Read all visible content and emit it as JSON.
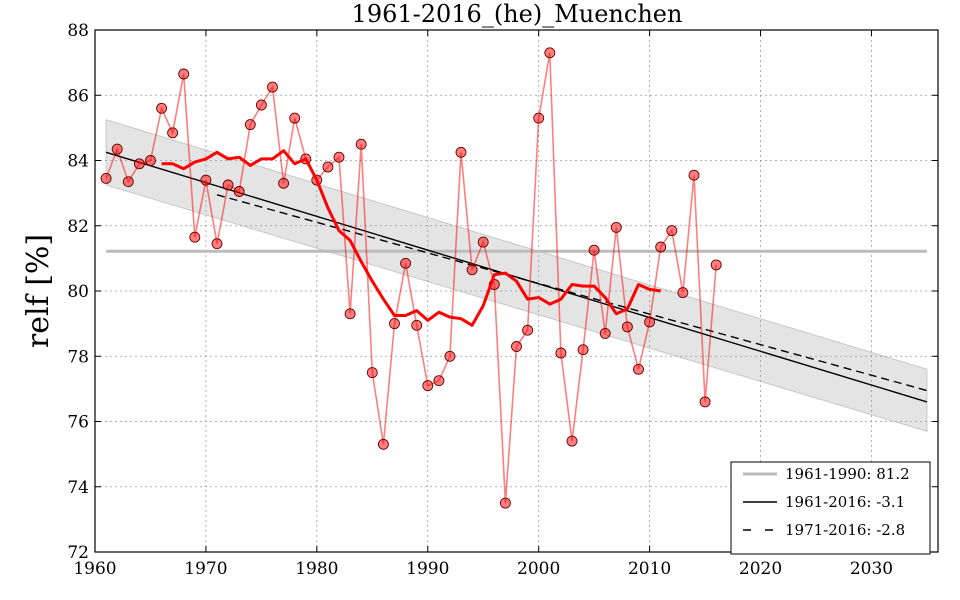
{
  "chart_data": {
    "type": "line",
    "title": "1961-2016_(he)_Muenchen",
    "ylabel": "relf [%]",
    "xlabel": "",
    "xlim": [
      1960,
      2036
    ],
    "ylim": [
      72,
      88
    ],
    "xticks": [
      1960,
      1970,
      1980,
      1990,
      2000,
      2010,
      2020,
      2030
    ],
    "yticks": [
      72,
      74,
      76,
      78,
      80,
      82,
      84,
      86,
      88
    ],
    "grid": true,
    "legend_position": "bottom-right",
    "series": [
      {
        "name": "",
        "kind": "annual-values",
        "color": "#ff0000",
        "points": [
          [
            1961,
            83.45
          ],
          [
            1962,
            84.35
          ],
          [
            1963,
            83.35
          ],
          [
            1964,
            83.9
          ],
          [
            1965,
            84.0
          ],
          [
            1966,
            85.6
          ],
          [
            1967,
            84.85
          ],
          [
            1968,
            86.65
          ],
          [
            1969,
            81.65
          ],
          [
            1970,
            83.4
          ],
          [
            1971,
            81.45
          ],
          [
            1972,
            83.25
          ],
          [
            1973,
            83.05
          ],
          [
            1974,
            85.1
          ],
          [
            1975,
            85.7
          ],
          [
            1976,
            86.25
          ],
          [
            1977,
            83.3
          ],
          [
            1978,
            85.3
          ],
          [
            1979,
            84.05
          ],
          [
            1980,
            83.4
          ],
          [
            1981,
            83.8
          ],
          [
            1982,
            84.1
          ],
          [
            1983,
            79.3
          ],
          [
            1984,
            84.5
          ],
          [
            1985,
            77.5
          ],
          [
            1986,
            75.3
          ],
          [
            1987,
            79.0
          ],
          [
            1988,
            80.85
          ],
          [
            1989,
            78.95
          ],
          [
            1990,
            77.1
          ],
          [
            1991,
            77.25
          ],
          [
            1992,
            78.0
          ],
          [
            1993,
            84.25
          ],
          [
            1994,
            80.65
          ],
          [
            1995,
            81.5
          ],
          [
            1996,
            80.2
          ],
          [
            1997,
            73.5
          ],
          [
            1998,
            78.3
          ],
          [
            1999,
            78.8
          ],
          [
            2000,
            85.3
          ],
          [
            2001,
            87.3
          ],
          [
            2002,
            78.1
          ],
          [
            2003,
            75.4
          ],
          [
            2004,
            78.2
          ],
          [
            2005,
            81.25
          ],
          [
            2006,
            78.7
          ],
          [
            2007,
            81.95
          ],
          [
            2008,
            78.9
          ],
          [
            2009,
            77.6
          ],
          [
            2010,
            79.05
          ],
          [
            2011,
            81.35
          ],
          [
            2012,
            81.85
          ],
          [
            2013,
            79.95
          ],
          [
            2014,
            83.55
          ],
          [
            2015,
            76.6
          ],
          [
            2016,
            80.8
          ]
        ]
      },
      {
        "name": "",
        "kind": "moving-average",
        "color": "#ff0000",
        "points": [
          [
            1966,
            83.9
          ],
          [
            1967,
            83.9
          ],
          [
            1968,
            83.75
          ],
          [
            1969,
            83.95
          ],
          [
            1970,
            84.05
          ],
          [
            1971,
            84.25
          ],
          [
            1972,
            84.05
          ],
          [
            1973,
            84.1
          ],
          [
            1974,
            83.85
          ],
          [
            1975,
            84.05
          ],
          [
            1976,
            84.05
          ],
          [
            1977,
            84.3
          ],
          [
            1978,
            83.9
          ],
          [
            1979,
            84.05
          ],
          [
            1980,
            83.4
          ],
          [
            1981,
            82.55
          ],
          [
            1982,
            81.85
          ],
          [
            1983,
            81.55
          ],
          [
            1984,
            80.9
          ],
          [
            1985,
            80.3
          ],
          [
            1986,
            79.75
          ],
          [
            1987,
            79.25
          ],
          [
            1988,
            79.25
          ],
          [
            1989,
            79.4
          ],
          [
            1990,
            79.1
          ],
          [
            1991,
            79.35
          ],
          [
            1992,
            79.2
          ],
          [
            1993,
            79.15
          ],
          [
            1994,
            78.95
          ],
          [
            1995,
            79.55
          ],
          [
            1996,
            80.5
          ],
          [
            1997,
            80.55
          ],
          [
            1998,
            80.3
          ],
          [
            1999,
            79.75
          ],
          [
            2000,
            79.8
          ],
          [
            2001,
            79.6
          ],
          [
            2002,
            79.75
          ],
          [
            2003,
            80.2
          ],
          [
            2004,
            80.15
          ],
          [
            2005,
            80.15
          ],
          [
            2006,
            79.8
          ],
          [
            2007,
            79.3
          ],
          [
            2008,
            79.45
          ],
          [
            2009,
            80.2
          ],
          [
            2010,
            80.05
          ],
          [
            2011,
            80.0
          ]
        ]
      },
      {
        "name": "1961-1990: 81.2",
        "kind": "reference-mean",
        "color": "#bbbbbb",
        "dash": "solid",
        "points": [
          [
            1961,
            81.22
          ],
          [
            2035,
            81.22
          ]
        ]
      },
      {
        "name": "1961-2016: -3.1",
        "kind": "trend",
        "color": "#000000",
        "dash": "solid",
        "points": [
          [
            1961,
            84.25
          ],
          [
            2035,
            76.6
          ]
        ]
      },
      {
        "name": "1971-2016: -2.8",
        "kind": "trend",
        "color": "#000000",
        "dash": "dashed",
        "points": [
          [
            1971,
            82.95
          ],
          [
            2035,
            76.95
          ]
        ]
      }
    ],
    "confidence_band": {
      "color": "#d9d9d9",
      "points": [
        [
          1961,
          83.25,
          85.25
        ],
        [
          2035,
          75.7,
          77.6
        ]
      ]
    }
  }
}
